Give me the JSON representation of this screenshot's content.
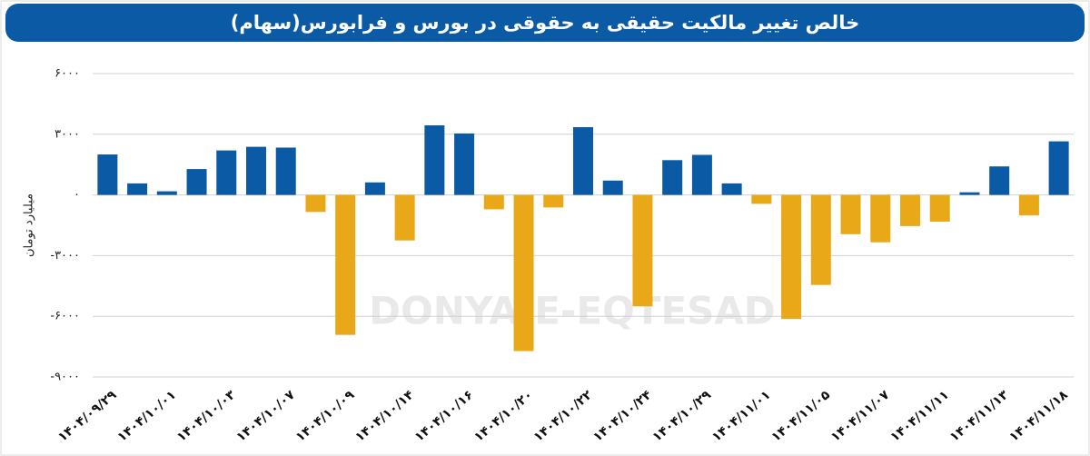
{
  "chart_data": {
    "type": "bar",
    "title": "خالص تغییر مالکیت حقیقی به حقوقی در بورس و فرابورس(سهام)",
    "y_label": "میلیارد تومان",
    "watermark": "DONYA-E-EQTESAD",
    "categories": [
      "۱۴۰۴/۰۹/۲۹",
      null,
      "۱۴۰۴/۱۰/۰۱",
      null,
      "۱۴۰۴/۱۰/۰۳",
      null,
      "۱۴۰۴/۱۰/۰۷",
      null,
      "۱۴۰۴/۱۰/۰۹",
      null,
      "۱۴۰۴/۱۰/۱۴",
      null,
      "۱۴۰۴/۱۰/۱۶",
      null,
      "۱۴۰۴/۱۰/۲۰",
      null,
      "۱۴۰۴/۱۰/۲۲",
      null,
      "۱۴۰۴/۱۰/۲۴",
      null,
      "۱۴۰۴/۱۰/۲۹",
      null,
      "۱۴۰۴/۱۱/۰۱",
      null,
      "۱۴۰۴/۱۱/۰۵",
      null,
      "۱۴۰۴/۱۱/۰۷",
      null,
      "۱۴۰۴/۱۱/۱۱",
      null,
      "۱۴۰۴/۱۱/۱۳",
      null,
      "۱۴۰۴/۱۱/۱۸"
    ],
    "values": [
      2000,
      570,
      180,
      1280,
      2200,
      2380,
      2340,
      -840,
      -6920,
      620,
      -2250,
      3440,
      3040,
      -710,
      -7720,
      -620,
      3350,
      710,
      -5510,
      1720,
      1980,
      570,
      -440,
      -6130,
      -4450,
      -1940,
      -2340,
      -1540,
      -1320,
      130,
      1410,
      -1010,
      2650
    ],
    "positive_color": "#0b5aa5",
    "negative_color": "#e8a817",
    "ylim": [
      -9000,
      6000
    ],
    "yticks": [
      {
        "value": -9000,
        "label": "-۹۰۰۰"
      },
      {
        "value": -6000,
        "label": "-۶۰۰۰"
      },
      {
        "value": -3000,
        "label": "-۳۰۰۰"
      },
      {
        "value": 0,
        "label": "۰"
      },
      {
        "value": 3000,
        "label": "۳۰۰۰"
      },
      {
        "value": 6000,
        "label": "۶۰۰۰"
      }
    ],
    "grid": true
  }
}
